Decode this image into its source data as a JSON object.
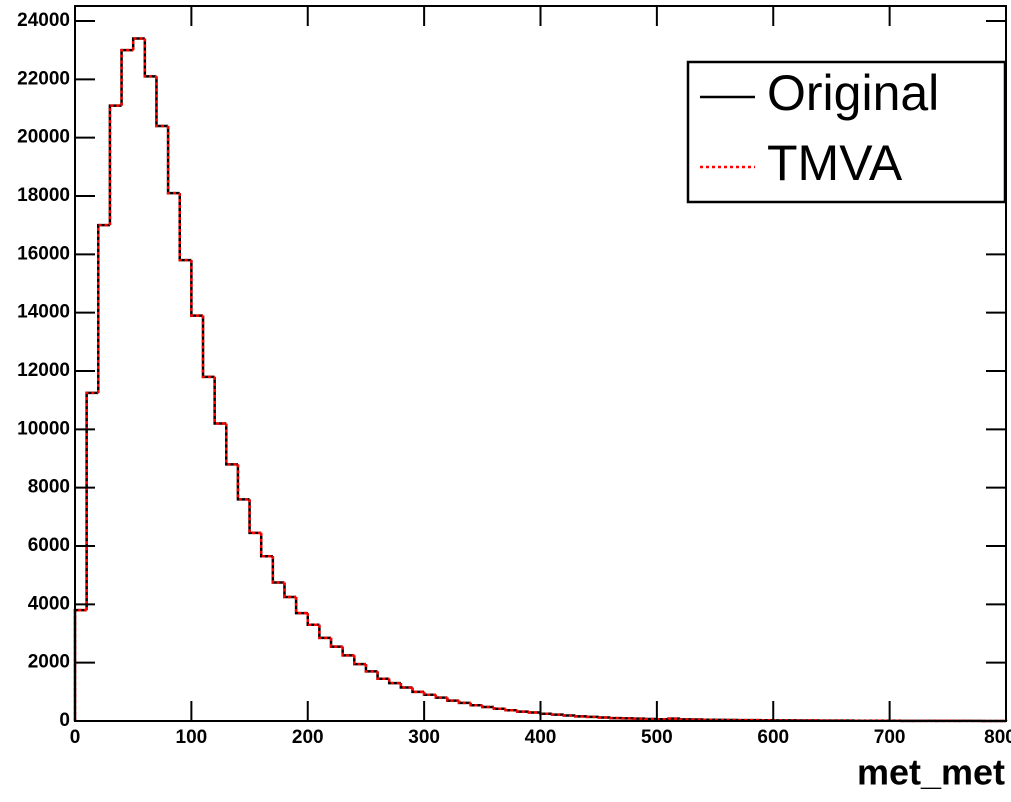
{
  "chart_data": {
    "type": "histogram",
    "x_label": "met_met",
    "bins": [
      0,
      10,
      20,
      30,
      40,
      50,
      60,
      70,
      80,
      90,
      100,
      110,
      120,
      130,
      140,
      150,
      160,
      170,
      180,
      190,
      200,
      210,
      220,
      230,
      240,
      250,
      260,
      270,
      280,
      290,
      300,
      310,
      320,
      330,
      340,
      350,
      360,
      370,
      380,
      390,
      400,
      410,
      420,
      430,
      440,
      450,
      460,
      470,
      480,
      490,
      500,
      510,
      520,
      530,
      540,
      550,
      560,
      570,
      580,
      590,
      600,
      610,
      620,
      630,
      640,
      650,
      660,
      670,
      680,
      690,
      700,
      710,
      720,
      730,
      740,
      750,
      760,
      770,
      780,
      790,
      800
    ],
    "series": [
      {
        "name": "Original",
        "color": "#000000",
        "dash": "solid",
        "values": [
          3800,
          11250,
          17000,
          21100,
          23000,
          23400,
          22100,
          20400,
          18100,
          15800,
          13900,
          11800,
          10200,
          8800,
          7600,
          6450,
          5650,
          4750,
          4250,
          3700,
          3300,
          2850,
          2550,
          2250,
          1950,
          1700,
          1450,
          1300,
          1150,
          1000,
          900,
          800,
          700,
          620,
          540,
          480,
          420,
          370,
          320,
          290,
          250,
          220,
          190,
          160,
          140,
          120,
          100,
          90,
          80,
          70,
          60,
          80,
          55,
          50,
          45,
          40,
          35,
          30,
          28,
          25,
          22,
          20,
          18,
          16,
          14,
          12,
          11,
          10,
          9,
          8,
          7,
          6,
          5,
          5,
          4,
          4,
          3,
          3,
          2,
          2
        ]
      },
      {
        "name": "TMVA",
        "color": "#ff0000",
        "dash": "dotted",
        "values": [
          3800,
          11250,
          17000,
          21100,
          23000,
          23400,
          22100,
          20400,
          18100,
          15800,
          13900,
          11800,
          10200,
          8800,
          7600,
          6450,
          5650,
          4750,
          4250,
          3700,
          3300,
          2850,
          2550,
          2250,
          1950,
          1700,
          1450,
          1300,
          1150,
          1000,
          900,
          800,
          700,
          620,
          540,
          480,
          420,
          370,
          320,
          290,
          250,
          220,
          190,
          160,
          140,
          120,
          100,
          90,
          80,
          70,
          60,
          80,
          55,
          50,
          45,
          40,
          35,
          30,
          28,
          25,
          22,
          20,
          18,
          16,
          14,
          12,
          11,
          10,
          9,
          8,
          7,
          6,
          5,
          5,
          4,
          4,
          3,
          3,
          2,
          2
        ]
      }
    ],
    "xlim": [
      0,
      800
    ],
    "xticks": [
      0,
      100,
      200,
      300,
      400,
      500,
      600,
      700,
      800
    ],
    "ylim": [
      0,
      24000
    ],
    "yticks": [
      0,
      2000,
      4000,
      6000,
      8000,
      10000,
      12000,
      14000,
      16000,
      18000,
      20000,
      22000,
      24000
    ],
    "legend": "top-right"
  }
}
